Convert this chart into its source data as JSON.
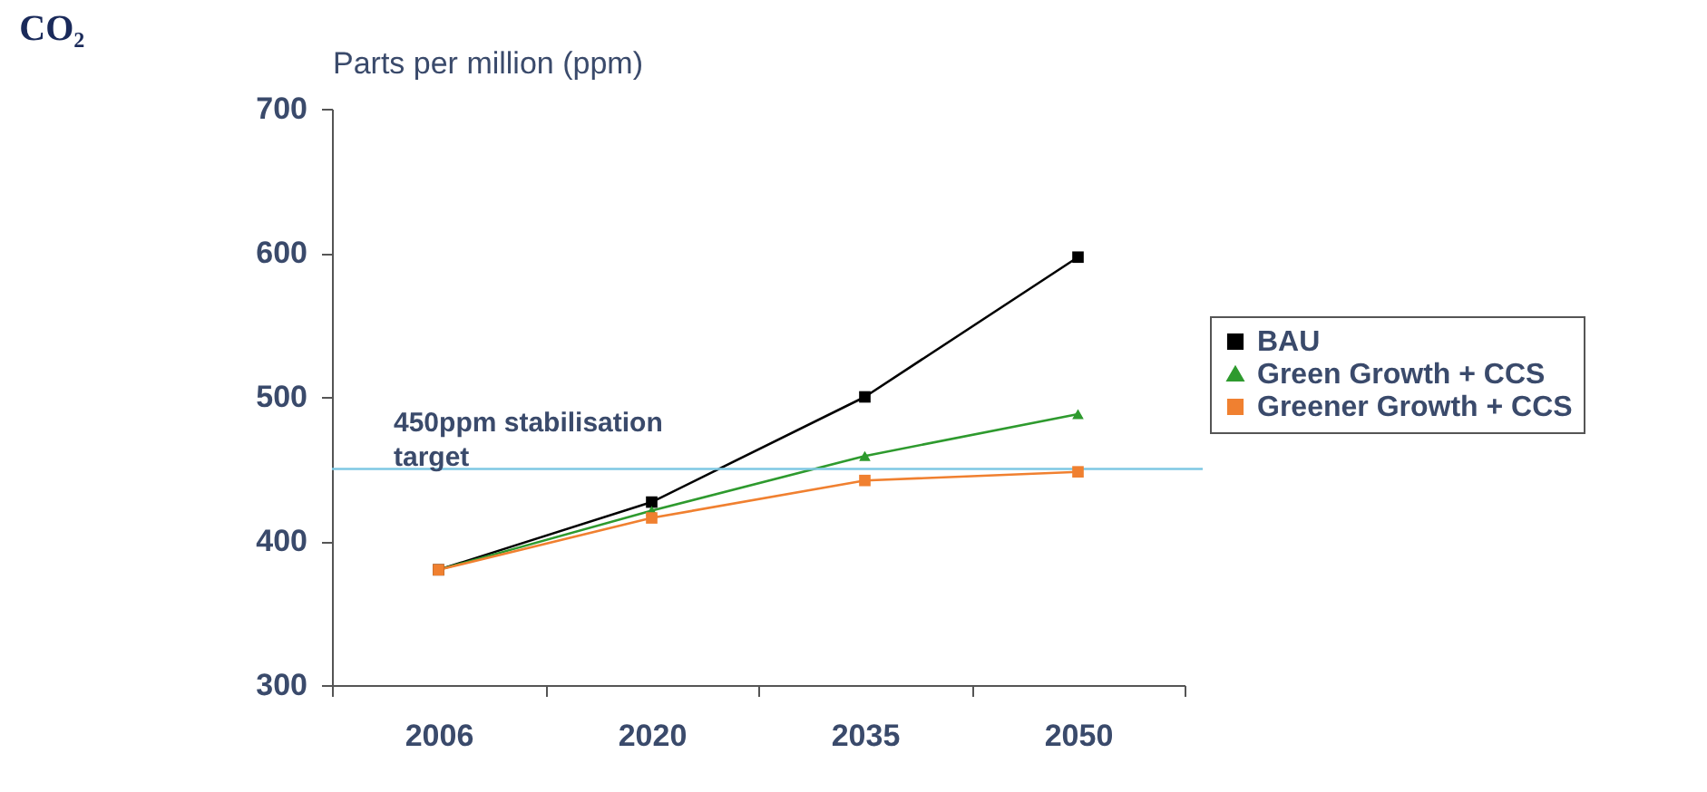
{
  "chart_data": {
    "type": "line",
    "title": "CO₂",
    "ylabel": "Parts per million (ppm)",
    "categories": [
      "2006",
      "2020",
      "2035",
      "2050"
    ],
    "series": [
      {
        "name": "BAU",
        "color": "#000000",
        "marker": "square",
        "values": [
          380,
          427,
          500,
          597
        ]
      },
      {
        "name": "Green Growth + CCS",
        "color": "#2e9a2e",
        "marker": "triangle",
        "values": [
          380,
          421,
          459,
          488
        ]
      },
      {
        "name": "Greener Growth + CCS",
        "color": "#f08030",
        "marker": "square",
        "values": [
          380,
          416,
          442,
          448
        ]
      }
    ],
    "ylim": [
      300,
      700
    ],
    "yticks": [
      300,
      400,
      500,
      600,
      700
    ],
    "ref_lines": [
      {
        "axis": "y",
        "value": 450,
        "label": "450ppm stabilisation target",
        "color": "#7ec8e3"
      }
    ],
    "grid": false,
    "legend": "right",
    "line_style": "solid"
  }
}
